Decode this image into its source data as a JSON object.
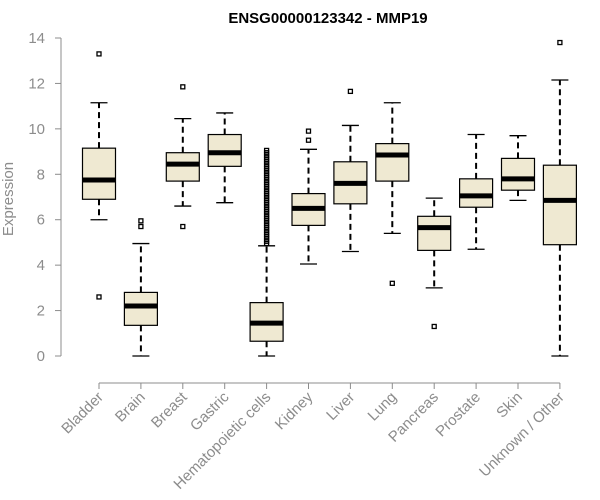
{
  "chart_data": {
    "type": "boxplot",
    "title": "ENSG00000123342 - MMP19",
    "ylabel": "Expression",
    "xlabel": "",
    "ylim": [
      0,
      14
    ],
    "yticks": [
      0,
      2,
      4,
      6,
      8,
      10,
      12,
      14
    ],
    "grid": false,
    "colors": {
      "box_fill": "#efe9d2",
      "axis": "#8c8c8c",
      "stroke": "#000000"
    },
    "categories": [
      "Bladder",
      "Brain",
      "Breast",
      "Gastric",
      "Hematopoietic cells",
      "Kidney",
      "Liver",
      "Lung",
      "Pancreas",
      "Prostate",
      "Skin",
      "Unknown / Other"
    ],
    "series": [
      {
        "category": "Bladder",
        "min": 6.0,
        "q1": 6.9,
        "median": 7.75,
        "q3": 9.15,
        "max": 11.15,
        "outliers": [
          13.3,
          2.6
        ]
      },
      {
        "category": "Brain",
        "min": 0.0,
        "q1": 1.35,
        "median": 2.2,
        "q3": 2.8,
        "max": 4.95,
        "outliers": [
          5.95,
          5.7
        ]
      },
      {
        "category": "Breast",
        "min": 6.6,
        "q1": 7.7,
        "median": 8.45,
        "q3": 8.95,
        "max": 10.45,
        "outliers": [
          11.85,
          5.7
        ]
      },
      {
        "category": "Gastric",
        "min": 6.75,
        "q1": 8.35,
        "median": 8.95,
        "q3": 9.75,
        "max": 10.7,
        "outliers": []
      },
      {
        "category": "Hematopoietic cells",
        "min": 0.0,
        "q1": 0.65,
        "median": 1.45,
        "q3": 2.35,
        "max": 4.85,
        "outliers": [
          4.95,
          5.05,
          5.15,
          5.25,
          5.35,
          5.45,
          5.55,
          5.65,
          5.75,
          5.85,
          5.95,
          6.05,
          6.15,
          6.25,
          6.35,
          6.45,
          6.55,
          6.65,
          6.75,
          6.85,
          6.95,
          7.05,
          7.15,
          7.25,
          7.35,
          7.45,
          7.55,
          7.65,
          7.75,
          7.85,
          7.95,
          8.05,
          8.15,
          8.25,
          8.35,
          8.45,
          8.55,
          8.65,
          8.75,
          8.85,
          8.95,
          9.05
        ]
      },
      {
        "category": "Kidney",
        "min": 4.05,
        "q1": 5.75,
        "median": 6.5,
        "q3": 7.15,
        "max": 9.1,
        "outliers": [
          9.9,
          9.5
        ]
      },
      {
        "category": "Liver",
        "min": 4.6,
        "q1": 6.7,
        "median": 7.6,
        "q3": 8.55,
        "max": 10.15,
        "outliers": [
          11.65
        ]
      },
      {
        "category": "Lung",
        "min": 5.4,
        "q1": 7.7,
        "median": 8.85,
        "q3": 9.35,
        "max": 11.15,
        "outliers": [
          3.2
        ]
      },
      {
        "category": "Pancreas",
        "min": 3.0,
        "q1": 4.65,
        "median": 5.65,
        "q3": 6.15,
        "max": 6.95,
        "outliers": [
          1.3
        ]
      },
      {
        "category": "Prostate",
        "min": 4.7,
        "q1": 6.55,
        "median": 7.05,
        "q3": 7.8,
        "max": 9.75,
        "outliers": []
      },
      {
        "category": "Skin",
        "min": 6.85,
        "q1": 7.3,
        "median": 7.8,
        "q3": 8.7,
        "max": 9.7,
        "outliers": []
      },
      {
        "category": "Unknown / Other",
        "min": 0.0,
        "q1": 4.9,
        "median": 6.85,
        "q3": 8.4,
        "max": 12.15,
        "outliers": [
          13.8
        ]
      }
    ]
  }
}
